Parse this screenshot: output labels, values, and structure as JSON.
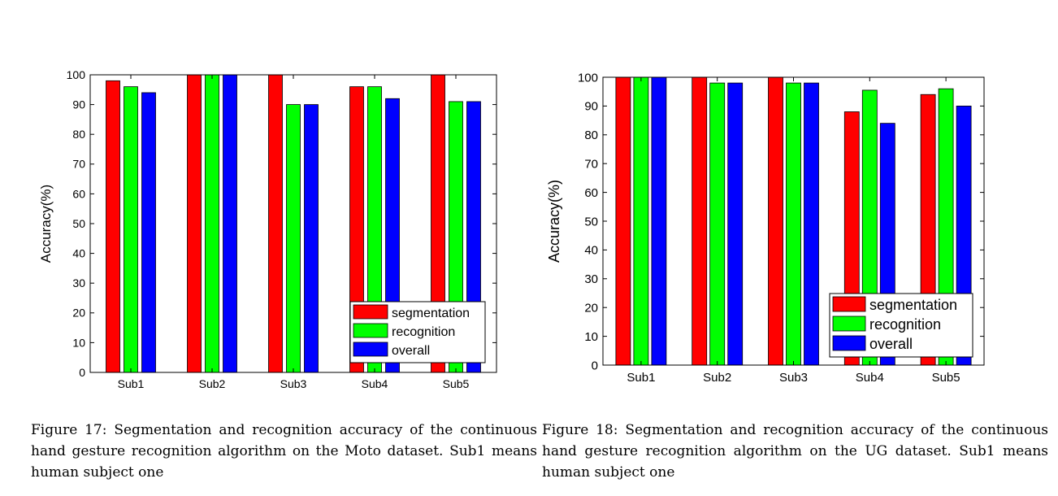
{
  "chart_data": [
    {
      "type": "bar",
      "categories": [
        "Sub1",
        "Sub2",
        "Sub3",
        "Sub4",
        "Sub5"
      ],
      "series": [
        {
          "name": "segmentation",
          "color": "#ff0000",
          "values": [
            98,
            100,
            100,
            96,
            100
          ]
        },
        {
          "name": "recognition",
          "color": "#00ff00",
          "values": [
            96,
            100,
            90,
            96,
            91
          ]
        },
        {
          "name": "overall",
          "color": "#0000ff",
          "values": [
            94,
            100,
            90,
            92,
            91
          ]
        }
      ],
      "ylabel": "Accuracy(%)",
      "xlabel": "",
      "ylim": [
        0,
        100
      ],
      "yticks": [
        0,
        10,
        20,
        30,
        40,
        50,
        60,
        70,
        80,
        90,
        100
      ],
      "grid": false,
      "legend_position": "bottom-right"
    },
    {
      "type": "bar",
      "categories": [
        "Sub1",
        "Sub2",
        "Sub3",
        "Sub4",
        "Sub5"
      ],
      "series": [
        {
          "name": "segmentation",
          "color": "#ff0000",
          "values": [
            100,
            100,
            100,
            88,
            94
          ]
        },
        {
          "name": "recognition",
          "color": "#00ff00",
          "values": [
            100,
            98,
            98,
            95.5,
            96
          ]
        },
        {
          "name": "overall",
          "color": "#0000ff",
          "values": [
            100,
            98,
            98,
            84,
            90
          ]
        }
      ],
      "ylabel": "Accuracy(%)",
      "xlabel": "",
      "ylim": [
        0,
        100
      ],
      "yticks": [
        0,
        10,
        20,
        30,
        40,
        50,
        60,
        70,
        80,
        90,
        100
      ],
      "grid": false,
      "legend_position": "bottom-right"
    }
  ],
  "captions": {
    "figure17": "Figure 17: Segmentation and recognition accuracy of the continuous hand gesture recognition algorithm on the Moto dataset. Sub1 means human subject one",
    "figure18": "Figure 18: Segmentation and recognition accuracy of the continuous hand gesture recognition algorithm on the UG dataset. Sub1 means human subject one"
  }
}
